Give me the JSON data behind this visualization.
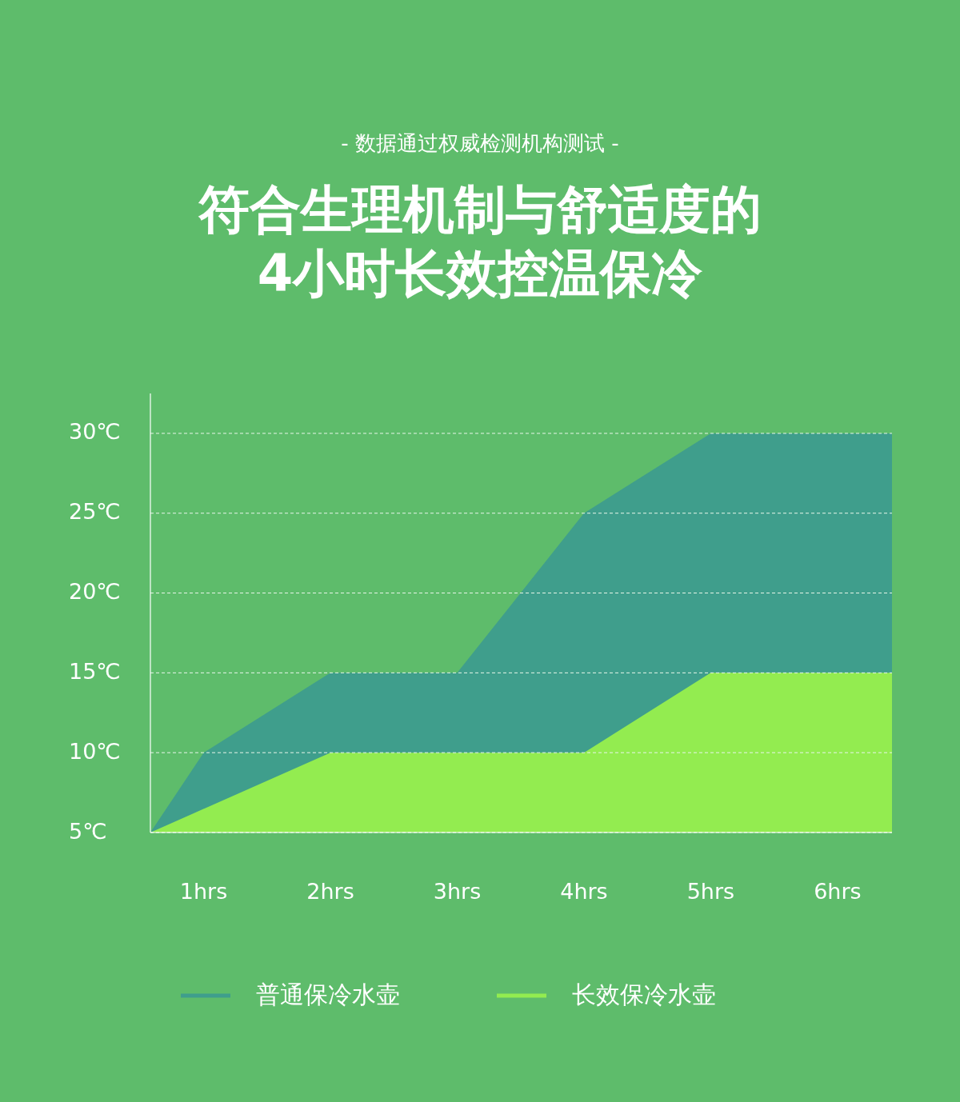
{
  "chart_data": {
    "type": "area",
    "subtitle": "- 数据通过权威检测机构测试 -",
    "title": "符合生理机制与舒适度的\n4小时长效控温保冷",
    "xlim": [
      0.58,
      6.43
    ],
    "ylim": [
      5,
      32.5
    ],
    "xticks": [
      {
        "value": 1,
        "label": "1hrs"
      },
      {
        "value": 2,
        "label": "2hrs"
      },
      {
        "value": 3,
        "label": "3hrs"
      },
      {
        "value": 4,
        "label": "4hrs"
      },
      {
        "value": 5,
        "label": "5hrs"
      },
      {
        "value": 6,
        "label": "6hrs"
      }
    ],
    "yticks": [
      {
        "value": 5,
        "label": "5℃"
      },
      {
        "value": 10,
        "label": "10℃"
      },
      {
        "value": 15,
        "label": "15℃"
      },
      {
        "value": 20,
        "label": "20℃"
      },
      {
        "value": 25,
        "label": "25℃"
      },
      {
        "value": 30,
        "label": "30℃"
      }
    ],
    "grid": "y",
    "legend": "bottom",
    "series": [
      {
        "name": "普通保冷水壶",
        "color": "#3f9e8c",
        "x": [
          0.58,
          1,
          2,
          3,
          4,
          5,
          6.43
        ],
        "values": [
          5,
          10,
          15,
          15,
          25,
          30,
          30
        ]
      },
      {
        "name": "长效保冷水壶",
        "color": "#93ec50",
        "x": [
          0.58,
          2,
          4,
          5,
          6.43
        ],
        "values": [
          5,
          10,
          10,
          15,
          15
        ]
      }
    ]
  }
}
